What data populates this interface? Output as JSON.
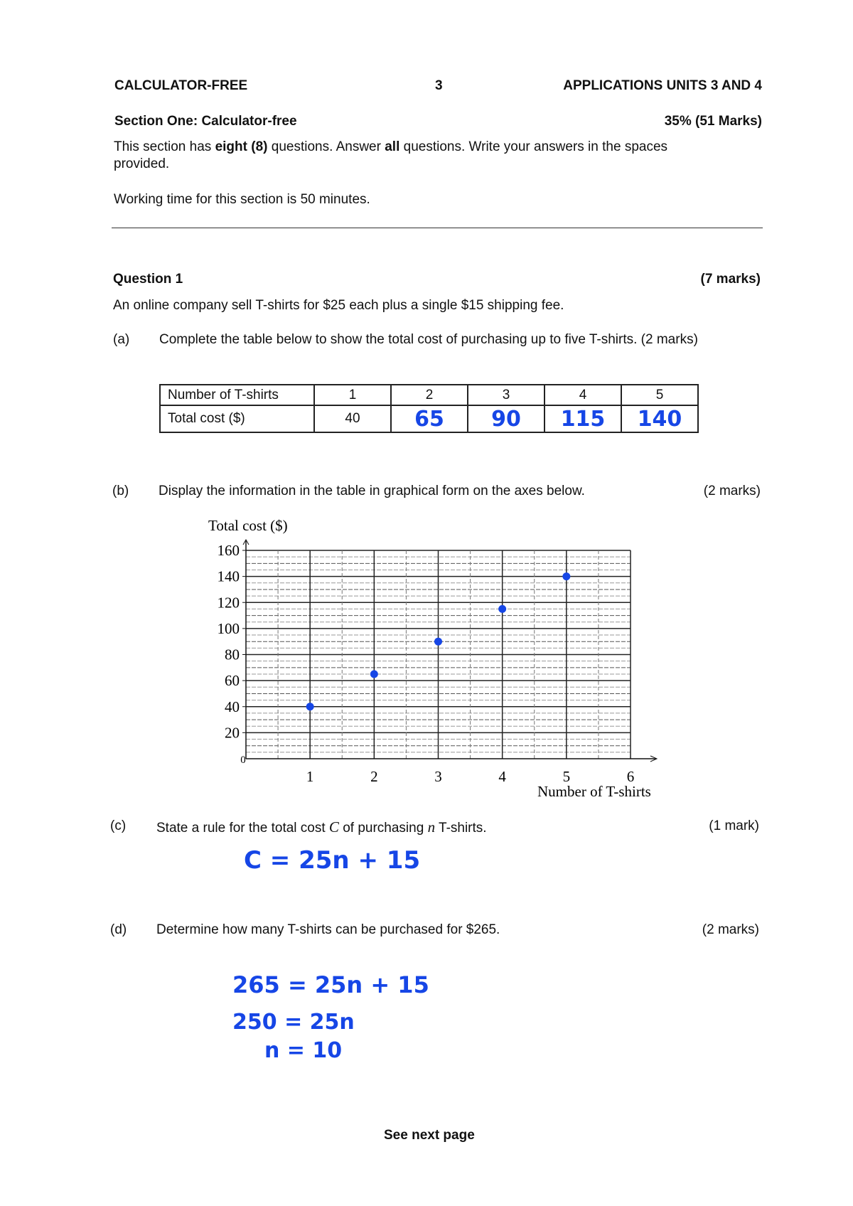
{
  "header": {
    "left": "CALCULATOR-FREE",
    "page_number": "3",
    "right": "APPLICATIONS UNITS 3 AND 4"
  },
  "section": {
    "title": "Section One: Calculator-free",
    "marks": "35% (51 Marks)",
    "instructions_1a": "This section has ",
    "instructions_bold1": "eight (8)",
    "instructions_1b": " questions. Answer ",
    "instructions_bold2": "all",
    "instructions_1c": " questions. Write your answers in the spaces",
    "instructions_2": "provided.",
    "working_time": "Working time for this section is 50 minutes."
  },
  "question": {
    "title": "Question 1",
    "marks": "(7 marks)",
    "intro": "An online company sell T-shirts for $25 each plus a single $15 shipping fee.",
    "parts": {
      "a": {
        "label": "(a)",
        "text": "Complete the table below to show the total cost of purchasing up to five T-shirts. (2 marks)"
      },
      "b": {
        "label": "(b)",
        "text": "Display the information in the table in graphical form on the axes below.",
        "marks": "(2 marks)"
      },
      "c": {
        "label": "(c)",
        "text_1": "State a rule for the total cost ",
        "var_c": "C",
        "text_2": " of purchasing ",
        "var_n": "n",
        "text_3": " T-shirts.",
        "marks": "(1 mark)",
        "answer": "C = 25n + 15"
      },
      "d": {
        "label": "(d)",
        "text": "Determine how many T-shirts can be purchased for $265.",
        "marks": "(2 marks)",
        "working": [
          "265 = 25n + 15",
          "250 = 25n",
          "n = 10"
        ]
      }
    }
  },
  "table": {
    "row1": [
      "Number of T-shirts",
      "1",
      "2",
      "3",
      "4",
      "5"
    ],
    "row2": [
      "Total cost ($)",
      "40",
      "65",
      "90",
      "115",
      "140"
    ]
  },
  "chart_data": {
    "type": "scatter",
    "title": "",
    "xlabel": "Number of T-shirts",
    "ylabel": "Total cost ($)",
    "xlim": [
      0,
      6
    ],
    "ylim": [
      0,
      160
    ],
    "x_ticks": [
      "1",
      "2",
      "3",
      "4",
      "5",
      "6"
    ],
    "y_ticks": [
      "20",
      "40",
      "60",
      "80",
      "100",
      "120",
      "140",
      "160"
    ],
    "origin_label": "0",
    "grid": true,
    "points": [
      {
        "x": 1,
        "y": 40
      },
      {
        "x": 2,
        "y": 65
      },
      {
        "x": 3,
        "y": 90
      },
      {
        "x": 4,
        "y": 115
      },
      {
        "x": 5,
        "y": 140
      }
    ],
    "point_color": "#1646e6"
  },
  "footer": "See next page"
}
